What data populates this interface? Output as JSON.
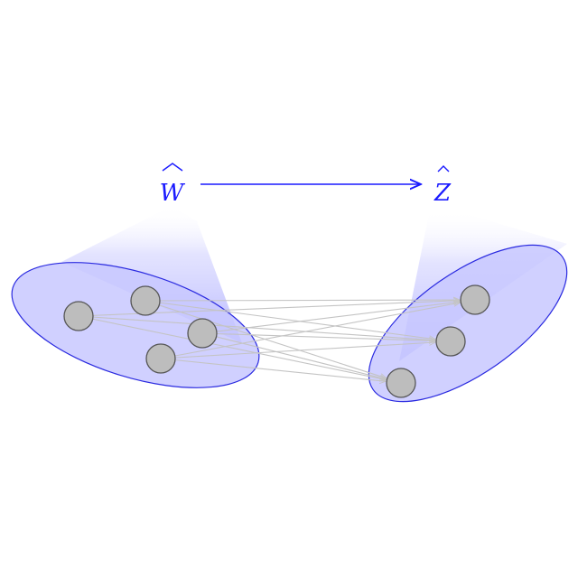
{
  "labels": {
    "source": "W",
    "target": "Z"
  },
  "colors": {
    "accent": "#1a1aff",
    "ellipse_fill": "#c8c8ff",
    "ellipse_stroke": "#2a2ae0",
    "node_fill": "#bdbdbd",
    "node_stroke": "#555555",
    "edge": "#c4c4c4"
  },
  "source_nodes": [
    "n1",
    "n2",
    "n3",
    "n4"
  ],
  "target_nodes": [
    "m1",
    "m2",
    "m3"
  ],
  "edges": [
    [
      "n1",
      "m1"
    ],
    [
      "n1",
      "m2"
    ],
    [
      "n1",
      "m3"
    ],
    [
      "n2",
      "m1"
    ],
    [
      "n2",
      "m2"
    ],
    [
      "n2",
      "m3"
    ],
    [
      "n3",
      "m1"
    ],
    [
      "n3",
      "m2"
    ],
    [
      "n3",
      "m3"
    ],
    [
      "n4",
      "m1"
    ],
    [
      "n4",
      "m2"
    ],
    [
      "n4",
      "m3"
    ]
  ]
}
